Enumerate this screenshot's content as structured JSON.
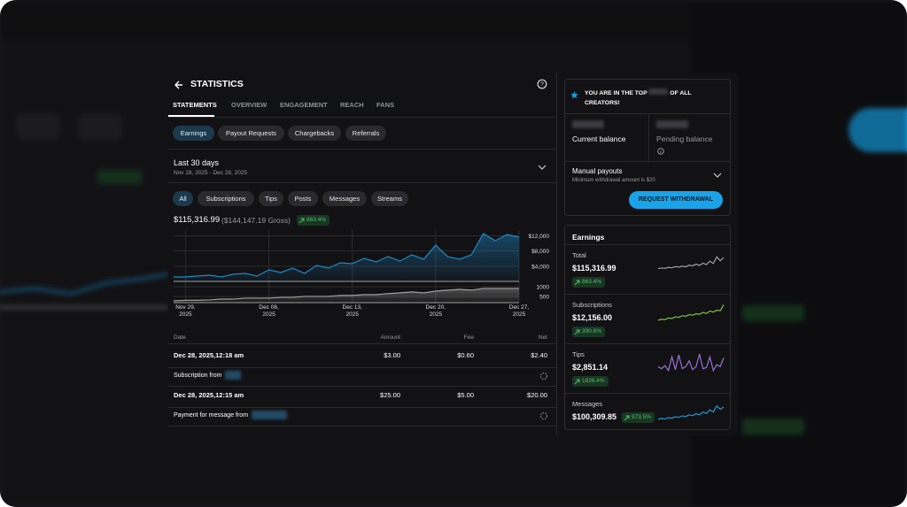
{
  "header": {
    "title": "STATISTICS"
  },
  "tabs": [
    "STATEMENTS",
    "OVERVIEW",
    "ENGAGEMENT",
    "REACH",
    "FANS"
  ],
  "sub_tabs": [
    "Earnings",
    "Payout Requests",
    "Chargebacks",
    "Referrals"
  ],
  "period": {
    "title": "Last 30 days",
    "range": "Nov 28, 2025 - Dec 28, 2025"
  },
  "filters": [
    "All",
    "Subscriptions",
    "Tips",
    "Posts",
    "Messages",
    "Streams"
  ],
  "summary": {
    "net": "$115,316.99",
    "gross": "($144,147.19 Gross)",
    "change": "863.4%"
  },
  "chart_data": {
    "type": "line",
    "categories": [
      null,
      "Nov 29, 2025",
      null,
      null,
      null,
      null,
      null,
      null,
      "Dec 06, 2025",
      null,
      null,
      null,
      null,
      null,
      null,
      "Dec 13, 2025",
      null,
      null,
      null,
      null,
      null,
      null,
      "Dec 20, 2025",
      null,
      null,
      null,
      null,
      null,
      null,
      "Dec 27, 2025"
    ],
    "series": [
      {
        "color": "#1e88c8",
        "values": [
          1160,
          1160,
          1400,
          1630,
          1160,
          1860,
          2090,
          1400,
          3030,
          2330,
          3490,
          2090,
          4190,
          3490,
          4890,
          4660,
          6050,
          5120,
          6520,
          5350,
          6980,
          5820,
          9540,
          6520,
          5820,
          6980,
          12570,
          10710,
          12340,
          11640
        ]
      },
      {
        "color": "#9e9e9e",
        "axis": "y2",
        "values": [
          270,
          300,
          300,
          320,
          360,
          360,
          410,
          410,
          410,
          450,
          450,
          500,
          500,
          500,
          550,
          550,
          590,
          590,
          640,
          680,
          730,
          680,
          770,
          820,
          860,
          820,
          910,
          910,
          910,
          910
        ]
      }
    ],
    "ylim": [
      0,
      13500
    ],
    "yticks": [
      {
        "value": 4000,
        "label": "$4,000"
      },
      {
        "value": 8000,
        "label": "$8,000"
      },
      {
        "value": 12000,
        "label": "$12,000"
      }
    ],
    "y2lim": [
      180,
      1270
    ],
    "y2ticks": [
      500,
      1000
    ],
    "grid": true
  },
  "table": {
    "columns": [
      "Date",
      "Amount",
      "Fee",
      "Net"
    ],
    "rows": [
      {
        "date": "Dec 28, 2025,12:18 am",
        "amount": "$3.00",
        "fee": "$0.60",
        "net": "$2.40",
        "description": "Subscription from"
      },
      {
        "date": "Dec 28, 2025,12:15 am",
        "amount": "$25.00",
        "fee": "$5.00",
        "net": "$20.00",
        "description": "Payment for message from"
      }
    ]
  },
  "rank": {
    "prefix": "YOU ARE IN THE TOP",
    "suffix": "OF ALL CREATORS!"
  },
  "balances": {
    "current": "Current balance",
    "pending": "Pending balance"
  },
  "payouts": {
    "title": "Manual payouts",
    "note": "Minimum withdrawal amount is $20",
    "button": "REQUEST WITHDRAWAL"
  },
  "earnings": {
    "title": "Earnings",
    "items": [
      {
        "label": "Total",
        "amount": "$115,316.99",
        "change": "863.4%",
        "color": "#a0a0a0",
        "ylim": [
          0,
          8
        ],
        "values": [
          2,
          2.2,
          2.1,
          2.5,
          2.3,
          2.8,
          2.6,
          3,
          2.7,
          3.4,
          3.1,
          3.8,
          3.3,
          4.2,
          3.6,
          5,
          4.1,
          6.8,
          5.2,
          6.5
        ]
      },
      {
        "label": "Subscriptions",
        "amount": "$12,156.00",
        "change": "390.6%",
        "color": "#7cc243",
        "ylim": [
          0,
          7
        ],
        "values": [
          1,
          1.3,
          1.2,
          1.8,
          1.6,
          2.2,
          2,
          2.6,
          2.4,
          3,
          2.8,
          3.3,
          3.1,
          3.8,
          3.4,
          4.3,
          3.9,
          4.6,
          4.4,
          6.5
        ]
      },
      {
        "label": "Tips",
        "amount": "$2,851.14",
        "change": "1826.4%",
        "color": "#9b6fd6",
        "ylim": [
          0,
          10
        ],
        "values": [
          3,
          2,
          3.5,
          1,
          8,
          1.5,
          9,
          2,
          3,
          6,
          1.5,
          3,
          9.5,
          2,
          2.5,
          8,
          1,
          4,
          3,
          7.5
        ]
      },
      {
        "label": "Messages",
        "amount": "$100,309.85",
        "change": "973.5%",
        "color": "#1e9ad6",
        "ylim": [
          0,
          7
        ],
        "values": [
          1,
          1.3,
          1.1,
          1.6,
          1.4,
          1.9,
          1.7,
          2.2,
          2,
          2.6,
          2.3,
          3,
          2.6,
          3.6,
          3.1,
          4.4,
          3.6,
          5.8,
          4.6,
          5.4
        ]
      }
    ]
  }
}
